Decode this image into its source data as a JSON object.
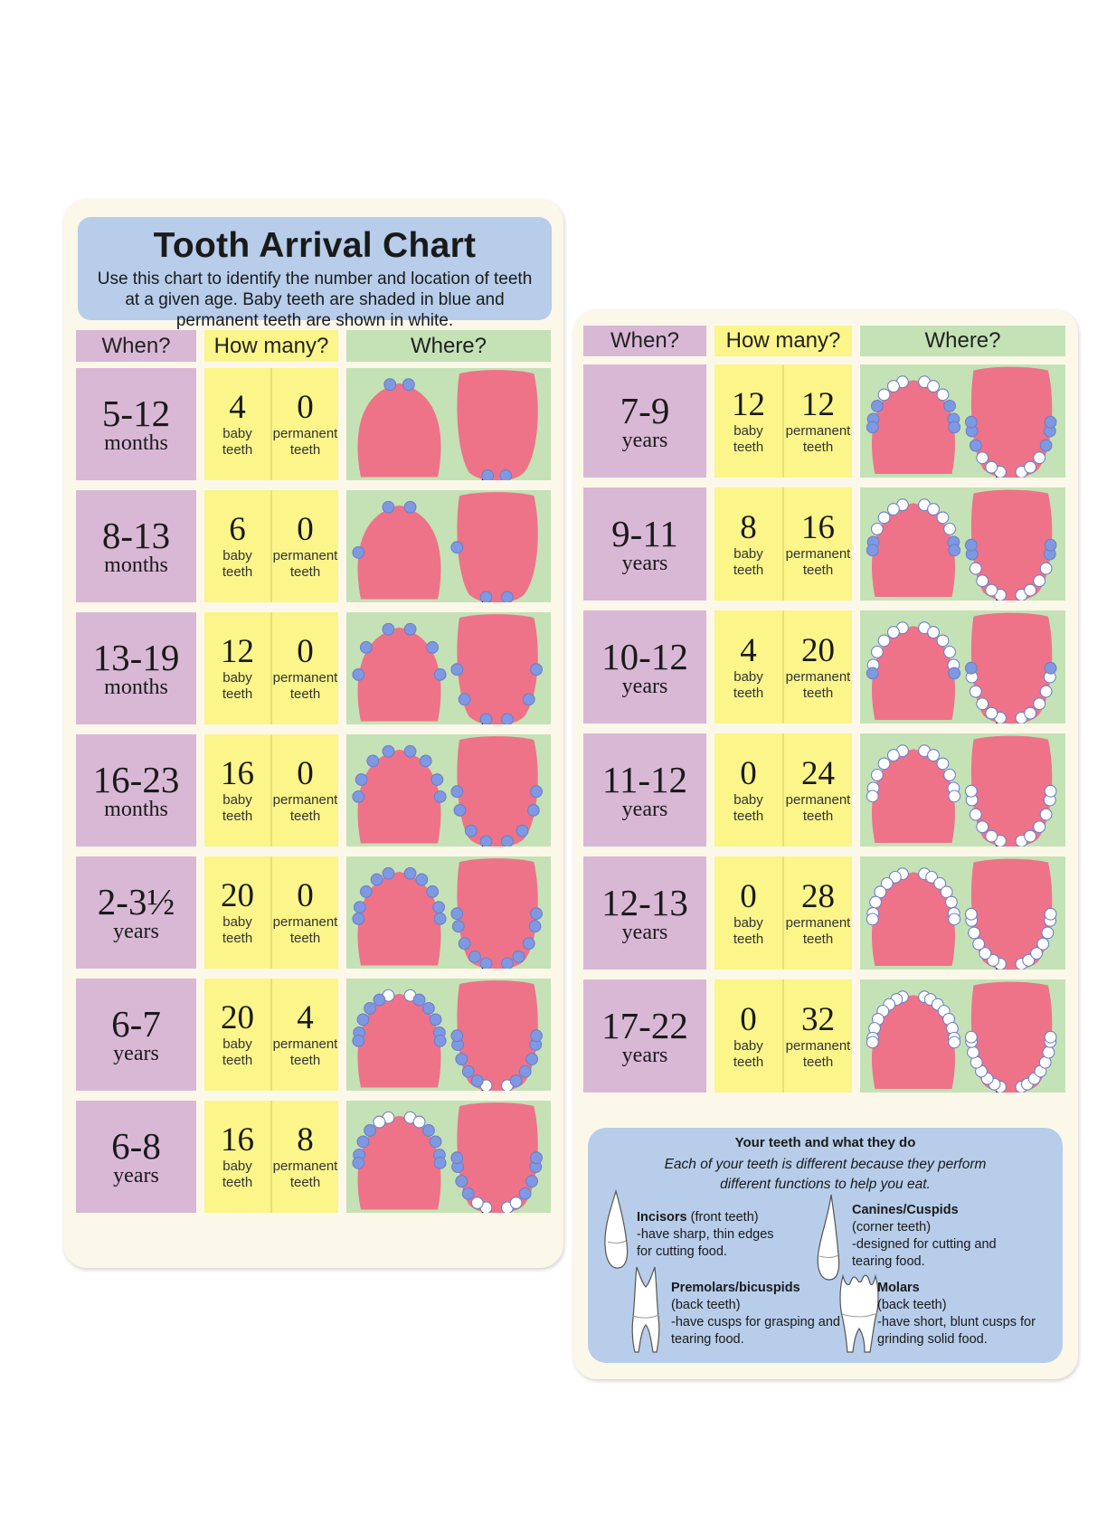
{
  "title": "Tooth Arrival Chart",
  "intro": "Use this chart to identify the number and location of teeth at a given age. Baby teeth are shaded in blue and permanent teeth are shown in white.",
  "headers": {
    "when": "When?",
    "how_many": "How many?",
    "where": "Where?"
  },
  "labels": {
    "baby": "baby teeth",
    "permanent": "permanent teeth",
    "upper": "upper",
    "lower": "lower"
  },
  "colors": {
    "when": "#d9b8d6",
    "how_many": "#fbf58a",
    "where": "#c4e2b5",
    "title_box": "#b7cdea",
    "gum": "#ee7388",
    "baby_tooth": "#7f98e2",
    "permanent_tooth": "#ffffff"
  },
  "left_rows": [
    {
      "age": "5-12",
      "unit": "months",
      "baby": "4",
      "permanent": "0"
    },
    {
      "age": "8-13",
      "unit": "months",
      "baby": "6",
      "permanent": "0"
    },
    {
      "age": "13-19",
      "unit": "months",
      "baby": "12",
      "permanent": "0"
    },
    {
      "age": "16-23",
      "unit": "months",
      "baby": "16",
      "permanent": "0"
    },
    {
      "age": "2-3½",
      "unit": "years",
      "baby": "20",
      "permanent": "0"
    },
    {
      "age": "6-7",
      "unit": "years",
      "baby": "20",
      "permanent": "4"
    },
    {
      "age": "6-8",
      "unit": "years",
      "baby": "16",
      "permanent": "8"
    }
  ],
  "right_rows": [
    {
      "age": "7-9",
      "unit": "years",
      "baby": "12",
      "permanent": "12"
    },
    {
      "age": "9-11",
      "unit": "years",
      "baby": "8",
      "permanent": "16"
    },
    {
      "age": "10-12",
      "unit": "years",
      "baby": "4",
      "permanent": "20"
    },
    {
      "age": "11-12",
      "unit": "years",
      "baby": "0",
      "permanent": "24"
    },
    {
      "age": "12-13",
      "unit": "years",
      "baby": "0",
      "permanent": "28"
    },
    {
      "age": "17-22",
      "unit": "years",
      "baby": "0",
      "permanent": "32"
    }
  ],
  "legend": {
    "title": "Your teeth and what they do",
    "intro": "Each of your teeth is different because they perform different functions to help you eat.",
    "incisors": {
      "name": "Incisors",
      "note": "(front teeth)",
      "desc": "-have sharp, thin edges for cutting food.",
      "icon": "incisor-icon"
    },
    "canines": {
      "name": "Canines/Cuspids",
      "note": "(corner teeth)",
      "desc": "-designed for cutting and tearing food.",
      "icon": "canine-icon"
    },
    "premolars": {
      "name": "Premolars/bicuspids",
      "note": "(back teeth)",
      "desc": "-have cusps for grasping and tearing food.",
      "icon": "premolar-icon"
    },
    "molars": {
      "name": "Molars",
      "note": "(back teeth)",
      "desc": "-have short, blunt cusps for grinding solid food.",
      "icon": "molar-icon"
    }
  }
}
